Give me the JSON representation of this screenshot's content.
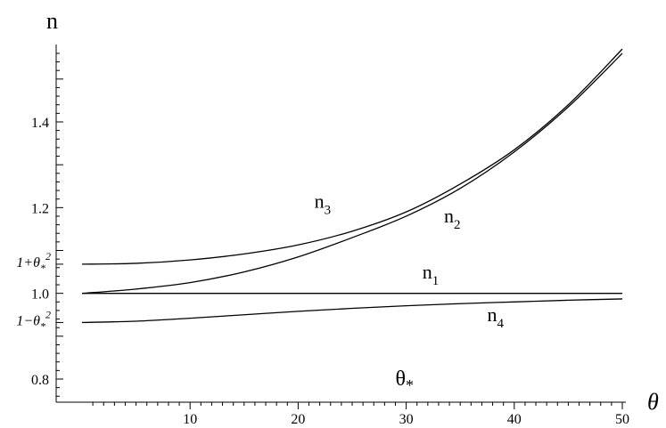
{
  "chart_data": {
    "type": "line",
    "xlabel": "θ",
    "ylabel": "n",
    "xlim": [
      0,
      50
    ],
    "ylim": [
      0.75,
      1.58
    ],
    "grid": false,
    "x_ticks": [
      {
        "value": 10,
        "label": "10"
      },
      {
        "value": 20,
        "label": "20"
      },
      {
        "value": 30,
        "label": "30"
      },
      {
        "value": 40,
        "label": "40"
      },
      {
        "value": 50,
        "label": "50"
      }
    ],
    "y_ticks": [
      {
        "value": 0.8,
        "label": "0.8"
      },
      {
        "value": 1.0,
        "label": "1.0"
      },
      {
        "value": 1.2,
        "label": "1.2"
      },
      {
        "value": 1.4,
        "label": "1.4"
      }
    ],
    "special_y_labels": [
      {
        "value": 1.068,
        "main": "1+θ",
        "sub": "*",
        "sup": "2"
      },
      {
        "value": 0.932,
        "main": "1−θ",
        "sub": "*",
        "sup": "2"
      }
    ],
    "annotation": {
      "main": "θ",
      "sub": "*",
      "x": 29,
      "y": 0.785
    },
    "series": [
      {
        "name": "n1",
        "label_main": "n",
        "label_sub": "1",
        "label_x": 31.5,
        "label_y": 1.035,
        "points": [
          [
            0,
            1.0
          ],
          [
            5,
            1.0
          ],
          [
            10,
            1.0
          ],
          [
            15,
            1.0
          ],
          [
            20,
            1.0
          ],
          [
            25,
            1.0
          ],
          [
            30,
            1.0
          ],
          [
            35,
            1.0
          ],
          [
            40,
            1.0
          ],
          [
            45,
            1.0
          ],
          [
            50,
            1.0
          ]
        ]
      },
      {
        "name": "n2",
        "label_main": "n",
        "label_sub": "2",
        "label_x": 33.5,
        "label_y": 1.165,
        "points": [
          [
            0,
            1.0
          ],
          [
            5,
            1.01
          ],
          [
            10,
            1.025
          ],
          [
            15,
            1.05
          ],
          [
            20,
            1.085
          ],
          [
            25,
            1.13
          ],
          [
            30,
            1.18
          ],
          [
            35,
            1.245
          ],
          [
            40,
            1.33
          ],
          [
            45,
            1.435
          ],
          [
            50,
            1.56
          ]
        ]
      },
      {
        "name": "n3",
        "label_main": "n",
        "label_sub": "3",
        "label_x": 21.5,
        "label_y": 1.2,
        "points": [
          [
            0,
            1.068
          ],
          [
            5,
            1.07
          ],
          [
            10,
            1.078
          ],
          [
            15,
            1.092
          ],
          [
            20,
            1.113
          ],
          [
            25,
            1.145
          ],
          [
            30,
            1.19
          ],
          [
            35,
            1.255
          ],
          [
            40,
            1.335
          ],
          [
            45,
            1.44
          ],
          [
            50,
            1.57
          ]
        ]
      },
      {
        "name": "n4",
        "label_main": "n",
        "label_sub": "4",
        "label_x": 37.5,
        "label_y": 0.935,
        "points": [
          [
            0,
            0.932
          ],
          [
            5,
            0.935
          ],
          [
            10,
            0.942
          ],
          [
            15,
            0.95
          ],
          [
            20,
            0.958
          ],
          [
            25,
            0.965
          ],
          [
            30,
            0.971
          ],
          [
            35,
            0.976
          ],
          [
            40,
            0.98
          ],
          [
            45,
            0.984
          ],
          [
            50,
            0.987
          ]
        ]
      }
    ]
  }
}
